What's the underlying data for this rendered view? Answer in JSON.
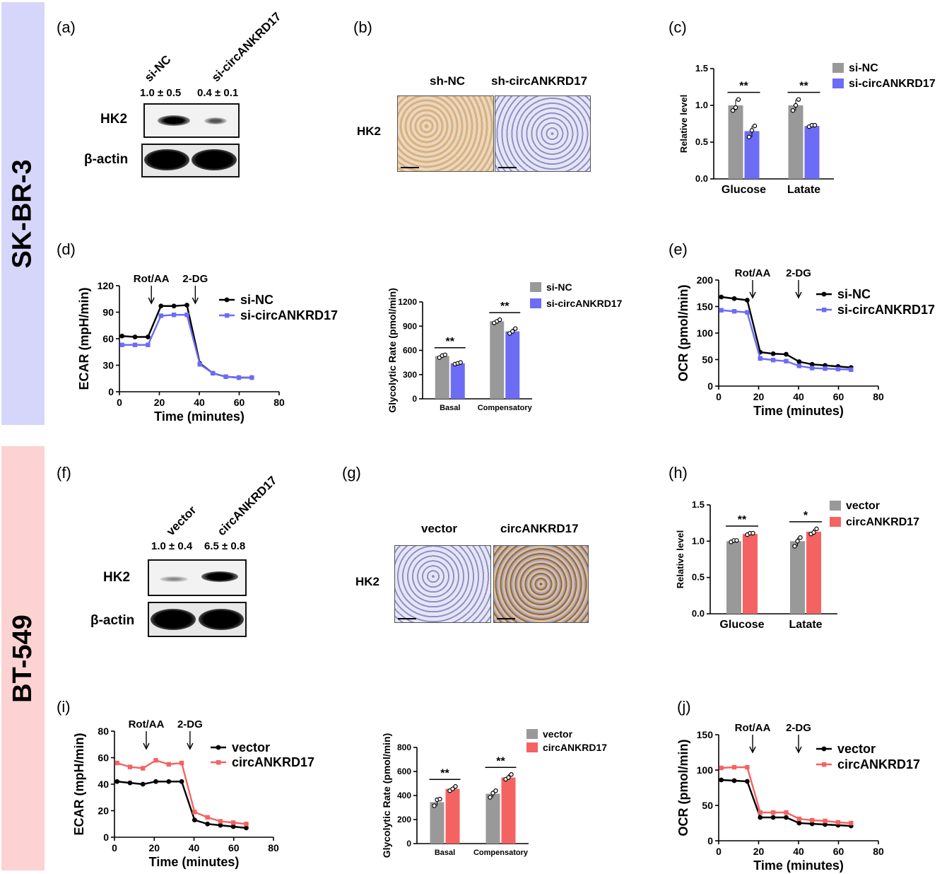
{
  "side_labels": {
    "top": "SK-BR-3",
    "bottom": "BT-549"
  },
  "colors": {
    "top_band": "#d6d6fb",
    "bottom_band": "#fcd2d2",
    "gray": "#999999",
    "blue": "#6c6cf5",
    "red": "#f56262",
    "black": "#000000"
  },
  "panel_letters": {
    "a": "(a)",
    "b": "(b)",
    "c": "(c)",
    "d": "(d)",
    "e": "(e)",
    "f": "(f)",
    "g": "(g)",
    "h": "(h)",
    "i": "(i)",
    "j": "(j)"
  },
  "panel_a": {
    "lane1": "si-NC",
    "lane2": "si-circANKRD17",
    "q1": "1.0 ± 0.5",
    "q2": "0.4 ± 0.1",
    "row1": "HK2",
    "row2": "β-actin"
  },
  "panel_b": {
    "col1": "sh-NC",
    "col2": "sh-circANKRD17",
    "row": "HK2"
  },
  "panel_f": {
    "lane1": "vector",
    "lane2": "circANKRD17",
    "q1": "1.0 ± 0.4",
    "q2": "6.5 ± 0.8",
    "row1": "HK2",
    "row2": "β-actin"
  },
  "panel_g": {
    "col1": "vector",
    "col2": "circANKRD17",
    "row": "HK2"
  },
  "chart_data": [
    {
      "id": "c",
      "type": "bar",
      "ylabel": "Relative level",
      "ylim": [
        0,
        1.5
      ],
      "yticks": [
        "0.0",
        "0.5",
        "1.0",
        "1.5"
      ],
      "categories": [
        "Glucose",
        "Latate"
      ],
      "series": [
        {
          "name": "si-NC",
          "color": "gray",
          "values": [
            1.0,
            1.0
          ],
          "points": [
            [
              0.93,
              0.97,
              1.08
            ],
            [
              0.93,
              1.0,
              1.08
            ]
          ]
        },
        {
          "name": "si-circANKRD17",
          "color": "blue",
          "values": [
            0.65,
            0.72
          ],
          "points": [
            [
              0.57,
              0.66,
              0.72
            ],
            [
              0.71,
              0.73,
              0.73
            ]
          ]
        }
      ],
      "significance": [
        "**",
        "**"
      ]
    },
    {
      "id": "h",
      "type": "bar",
      "ylabel": "Relative level",
      "ylim": [
        0,
        1.5
      ],
      "yticks": [
        "0.0",
        "0.5",
        "1.0",
        "1.5"
      ],
      "categories": [
        "Glucose",
        "Latate"
      ],
      "series": [
        {
          "name": "vector",
          "color": "gray",
          "values": [
            1.0,
            1.0
          ],
          "points": [
            [
              0.99,
              1.01,
              1.01
            ],
            [
              0.93,
              1.0,
              1.05
            ]
          ]
        },
        {
          "name": "circANKRD17",
          "color": "red",
          "values": [
            1.1,
            1.13
          ],
          "points": [
            [
              1.09,
              1.11,
              1.11
            ],
            [
              1.1,
              1.12,
              1.17
            ]
          ]
        }
      ],
      "significance": [
        "**",
        "*"
      ]
    },
    {
      "id": "d1",
      "type": "line",
      "ylabel": "ECAR (mpH/min)",
      "xlabel": "Time (minutes)",
      "xlim": [
        0,
        80
      ],
      "ylim": [
        0,
        120
      ],
      "xticks": [
        "0",
        "20",
        "40",
        "60",
        "80"
      ],
      "yticks": [
        "0",
        "30",
        "60",
        "90",
        "120"
      ],
      "x": [
        1.3,
        7.8,
        14.3,
        20.8,
        27.3,
        33.8,
        40.3,
        46.8,
        53.3,
        59.8,
        66.3
      ],
      "annotations": [
        "Rot/AA",
        "2-DG"
      ],
      "annotation_x": [
        16,
        38
      ],
      "series": [
        {
          "name": "si-NC",
          "color": "black",
          "values": [
            63,
            62,
            62,
            97,
            97,
            98,
            32,
            21,
            17,
            16,
            16
          ]
        },
        {
          "name": "si-circANKRD17",
          "color": "blue",
          "values": [
            53,
            53,
            53,
            86,
            87,
            87,
            31,
            21,
            17,
            16,
            16
          ]
        }
      ]
    },
    {
      "id": "d2",
      "type": "bar",
      "ylabel": "Glycolytic Rate (pmol/min)",
      "ylim": [
        0,
        1200
      ],
      "yticks": [
        "0",
        "300",
        "600",
        "900",
        "1200"
      ],
      "categories": [
        "Basal",
        "Compensatory"
      ],
      "series": [
        {
          "name": "si-NC",
          "color": "gray",
          "values": [
            530,
            960
          ],
          "points": [
            [
              510,
              535,
              545
            ],
            [
              940,
              960,
              980
            ]
          ]
        },
        {
          "name": "si-circANKRD17",
          "color": "blue",
          "values": [
            440,
            835
          ],
          "points": [
            [
              430,
              440,
              450
            ],
            [
              810,
              835,
              870
            ]
          ]
        }
      ],
      "significance": [
        "**",
        "**"
      ]
    },
    {
      "id": "e",
      "type": "line",
      "ylabel": "OCR (pmol/min)",
      "xlabel": "Time (minutes)",
      "xlim": [
        0,
        80
      ],
      "ylim": [
        0,
        200
      ],
      "xticks": [
        "0",
        "20",
        "40",
        "60",
        "80"
      ],
      "yticks": [
        "0",
        "50",
        "100",
        "150",
        "200"
      ],
      "x": [
        1.3,
        7.8,
        14.3,
        20.8,
        27.3,
        33.8,
        40.3,
        46.8,
        53.3,
        59.8,
        66.3
      ],
      "annotations": [
        "Rot/AA",
        "2-DG"
      ],
      "annotation_x": [
        17,
        40
      ],
      "series": [
        {
          "name": "si-NC",
          "color": "black",
          "values": [
            168,
            165,
            162,
            64,
            61,
            60,
            46,
            41,
            39,
            37,
            35
          ]
        },
        {
          "name": "si-circANKRD17",
          "color": "blue",
          "values": [
            143,
            141,
            139,
            52,
            49,
            47,
            38,
            34,
            33,
            32,
            31
          ]
        }
      ]
    },
    {
      "id": "i1",
      "type": "line",
      "ylabel": "ECAR (mpH/min)",
      "xlabel": "Time (minutes)",
      "xlim": [
        0,
        80
      ],
      "ylim": [
        0,
        80
      ],
      "xticks": [
        "0",
        "20",
        "40",
        "60",
        "80"
      ],
      "yticks": [
        "0",
        "20",
        "40",
        "60",
        "80"
      ],
      "x": [
        1.3,
        7.8,
        14.3,
        20.8,
        27.3,
        33.8,
        40.3,
        46.8,
        53.3,
        59.8,
        66.3
      ],
      "annotations": [
        "Rot/AA",
        "2-DG"
      ],
      "annotation_x": [
        16,
        38
      ],
      "series": [
        {
          "name": "vector",
          "color": "black",
          "values": [
            42,
            41,
            40,
            42,
            42,
            42,
            13,
            10,
            9,
            8,
            7
          ]
        },
        {
          "name": "circANKRD17",
          "color": "red",
          "values": [
            56,
            53,
            52,
            58,
            55,
            56,
            19,
            15,
            12,
            11,
            10
          ]
        }
      ]
    },
    {
      "id": "i2",
      "type": "bar",
      "ylabel": "Glycolytic Rate (pmol/min)",
      "ylim": [
        0,
        800
      ],
      "yticks": [
        "0",
        "200",
        "400",
        "600",
        "800"
      ],
      "categories": [
        "Basal",
        "Compensatory"
      ],
      "series": [
        {
          "name": "vector",
          "color": "gray",
          "values": [
            345,
            415
          ],
          "points": [
            [
              315,
              365,
              370
            ],
            [
              385,
              420,
              440
            ]
          ]
        },
        {
          "name": "circANKRD17",
          "color": "red",
          "values": [
            455,
            550
          ],
          "points": [
            [
              440,
              455,
              475
            ],
            [
              535,
              550,
              575
            ]
          ]
        }
      ],
      "significance": [
        "**",
        "**"
      ]
    },
    {
      "id": "j",
      "type": "line",
      "ylabel": "OCR (pmol/min)",
      "xlabel": "Time (minutes)",
      "xlim": [
        0,
        80
      ],
      "ylim": [
        0,
        150
      ],
      "xticks": [
        "0",
        "20",
        "40",
        "60",
        "80"
      ],
      "yticks": [
        "0",
        "50",
        "100",
        "150"
      ],
      "x": [
        1.3,
        7.8,
        14.3,
        20.8,
        27.3,
        33.8,
        40.3,
        46.8,
        53.3,
        59.8,
        66.3
      ],
      "annotations": [
        "Rot/AA",
        "2-DG"
      ],
      "annotation_x": [
        17,
        40
      ],
      "series": [
        {
          "name": "vector",
          "color": "black",
          "values": [
            86,
            85,
            84,
            33,
            33,
            33,
            25,
            24,
            23,
            22,
            21
          ]
        },
        {
          "name": "circANKRD17",
          "color": "red",
          "values": [
            103,
            104,
            104,
            40,
            40,
            40,
            31,
            29,
            28,
            26,
            25
          ]
        }
      ]
    }
  ]
}
